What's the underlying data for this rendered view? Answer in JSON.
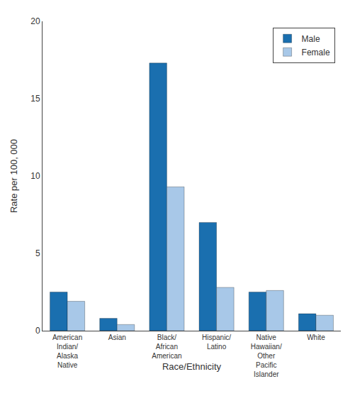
{
  "chart_data": {
    "type": "bar",
    "categories": [
      "American\nIndian/\nAlaska\nNative",
      "Asian",
      "Black/\nAfrican\nAmerican",
      "Hispanic/\nLatino",
      "Native\nHawaiian/\nOther\nPacific\nIslander",
      "White"
    ],
    "series": [
      {
        "name": "Male",
        "color": "#1a6faf",
        "values": [
          2.5,
          0.8,
          17.3,
          7.0,
          2.5,
          1.1
        ]
      },
      {
        "name": "Female",
        "color": "#a8c8e8",
        "values": [
          1.9,
          0.4,
          9.3,
          2.8,
          2.6,
          1.0
        ]
      }
    ],
    "xlabel": "Race/Ethnicity",
    "ylabel": "Rate per 100, 000",
    "ylim": [
      0,
      20
    ],
    "yticks": [
      0,
      5,
      10,
      15,
      20
    ],
    "grid": false,
    "legend": "upper right"
  }
}
